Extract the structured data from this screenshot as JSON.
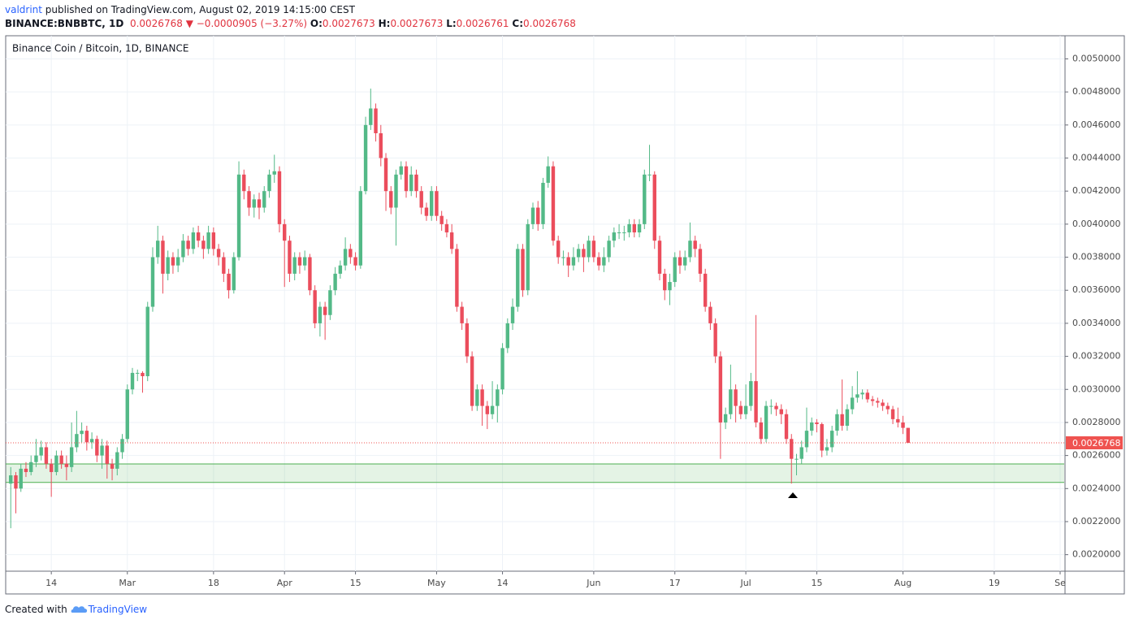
{
  "header": {
    "author": "valdrint",
    "published": " published on TradingView.com, August 02, 2019 14:15:00 CEST",
    "symbol": "BINANCE:BNBBTC, 1D",
    "change": "−0.0000905 (−3.27%)",
    "ohlc_labels": [
      "O:",
      "H:",
      "L:",
      "C:"
    ]
  },
  "footer": {
    "created": "Created with",
    "brand": "TradingView"
  },
  "chart_data": {
    "type": "candlestick",
    "title": "Binance Coin / Bitcoin, 1D, BINANCE",
    "up_color": "#53b987",
    "down_color": "#eb4d5c",
    "grid": true,
    "zone_color": "#4caf50",
    "price_line_color": "#ef5350",
    "zone": [
      0.002437,
      0.002549
    ],
    "xlim": [
      "02-05",
      "09-01"
    ],
    "xticks": [
      {
        "value": "02-14",
        "label": "14"
      },
      {
        "value": "03-01",
        "label": "Mar"
      },
      {
        "value": "03-18",
        "label": "18"
      },
      {
        "value": "04-01",
        "label": "Apr"
      },
      {
        "value": "04-15",
        "label": "15"
      },
      {
        "value": "05-01",
        "label": "May"
      },
      {
        "value": "05-14",
        "label": "14"
      },
      {
        "value": "06-01",
        "label": "Jun"
      },
      {
        "value": "06-17",
        "label": "17"
      },
      {
        "value": "07-01",
        "label": "Jul"
      },
      {
        "value": "07-15",
        "label": "15"
      },
      {
        "value": "08-01",
        "label": "Aug"
      },
      {
        "value": "08-19",
        "label": "19"
      },
      {
        "value": "09-01",
        "label": "Se"
      }
    ],
    "ylim": [
      0.0019,
      0.00514
    ],
    "yticks": [
      {
        "value": 0.002,
        "label": "0.0020000"
      },
      {
        "value": 0.0022,
        "label": "0.0022000"
      },
      {
        "value": 0.0024,
        "label": "0.0024000"
      },
      {
        "value": 0.0026,
        "label": "0.0026000"
      },
      {
        "value": 0.0028,
        "label": "0.0028000"
      },
      {
        "value": 0.003,
        "label": "0.0030000"
      },
      {
        "value": 0.0032,
        "label": "0.0032000"
      },
      {
        "value": 0.0034,
        "label": "0.0034000"
      },
      {
        "value": 0.0036,
        "label": "0.0036000"
      },
      {
        "value": 0.0038,
        "label": "0.0038000"
      },
      {
        "value": 0.004,
        "label": "0.0040000"
      },
      {
        "value": 0.0042,
        "label": "0.0042000"
      },
      {
        "value": 0.0044,
        "label": "0.0044000"
      },
      {
        "value": 0.0046,
        "label": "0.0046000"
      },
      {
        "value": 0.0048,
        "label": "0.0048000"
      },
      {
        "value": 0.005,
        "label": "0.0050000"
      }
    ],
    "x": [
      "02-06",
      "02-07",
      "02-08",
      "02-09",
      "02-10",
      "02-11",
      "02-12",
      "02-13",
      "02-14",
      "02-15",
      "02-16",
      "02-17",
      "02-18",
      "02-19",
      "02-20",
      "02-21",
      "02-22",
      "02-23",
      "02-24",
      "02-25",
      "02-26",
      "02-27",
      "02-28",
      "03-01",
      "03-02",
      "03-03",
      "03-04",
      "03-05",
      "03-06",
      "03-07",
      "03-08",
      "03-09",
      "03-10",
      "03-11",
      "03-12",
      "03-13",
      "03-14",
      "03-15",
      "03-16",
      "03-17",
      "03-18",
      "03-19",
      "03-20",
      "03-21",
      "03-22",
      "03-23",
      "03-24",
      "03-25",
      "03-26",
      "03-27",
      "03-28",
      "03-29",
      "03-30",
      "03-31",
      "04-01",
      "04-02",
      "04-03",
      "04-04",
      "04-05",
      "04-06",
      "04-07",
      "04-08",
      "04-09",
      "04-10",
      "04-11",
      "04-12",
      "04-13",
      "04-14",
      "04-15",
      "04-16",
      "04-17",
      "04-18",
      "04-19",
      "04-20",
      "04-21",
      "04-22",
      "04-23",
      "04-24",
      "04-25",
      "04-26",
      "04-27",
      "04-28",
      "04-29",
      "04-30",
      "05-01",
      "05-02",
      "05-03",
      "05-04",
      "05-05",
      "05-06",
      "05-07",
      "05-08",
      "05-09",
      "05-10",
      "05-11",
      "05-12",
      "05-13",
      "05-14",
      "05-15",
      "05-16",
      "05-17",
      "05-18",
      "05-19",
      "05-20",
      "05-21",
      "05-22",
      "05-23",
      "05-24",
      "05-25",
      "05-26",
      "05-27",
      "05-28",
      "05-29",
      "05-30",
      "05-31",
      "06-01",
      "06-02",
      "06-03",
      "06-04",
      "06-05",
      "06-06",
      "06-07",
      "06-08",
      "06-09",
      "06-10",
      "06-11",
      "06-12",
      "06-13",
      "06-14",
      "06-15",
      "06-16",
      "06-17",
      "06-18",
      "06-19",
      "06-20",
      "06-21",
      "06-22",
      "06-23",
      "06-24",
      "06-25",
      "06-26",
      "06-27",
      "06-28",
      "06-29",
      "06-30",
      "07-01",
      "07-02",
      "07-03",
      "07-04",
      "07-05",
      "07-06",
      "07-07",
      "07-08",
      "07-09",
      "07-10",
      "07-11",
      "07-12",
      "07-13",
      "07-14",
      "07-15",
      "07-16",
      "07-17",
      "07-18",
      "07-19",
      "07-20",
      "07-21",
      "07-22",
      "07-23",
      "07-24",
      "07-25",
      "07-26",
      "07-27",
      "07-28",
      "07-29",
      "07-30",
      "07-31",
      "08-01",
      "08-02"
    ],
    "open": [
      0.00243,
      0.00248,
      0.0024,
      0.00252,
      0.0025,
      0.00256,
      0.0026,
      0.00265,
      0.00255,
      0.0025,
      0.0026,
      0.00255,
      0.00253,
      0.00265,
      0.00273,
      0.00275,
      0.00268,
      0.0027,
      0.0026,
      0.00266,
      0.00255,
      0.00252,
      0.00262,
      0.0027,
      0.003,
      0.0031,
      0.0031,
      0.00308,
      0.0035,
      0.0038,
      0.0039,
      0.0037,
      0.0038,
      0.00375,
      0.0038,
      0.0039,
      0.00385,
      0.00395,
      0.0039,
      0.00385,
      0.00395,
      0.00385,
      0.0038,
      0.0037,
      0.0036,
      0.0038,
      0.0043,
      0.0042,
      0.0041,
      0.00415,
      0.0041,
      0.0042,
      0.0043,
      0.00432,
      0.004,
      0.0039,
      0.0037,
      0.0038,
      0.00375,
      0.0038,
      0.0036,
      0.0034,
      0.0035,
      0.00345,
      0.0036,
      0.0037,
      0.00375,
      0.00385,
      0.0038,
      0.00375,
      0.0042,
      0.0046,
      0.0047,
      0.00455,
      0.0044,
      0.0042,
      0.0041,
      0.0043,
      0.00435,
      0.0042,
      0.0043,
      0.0042,
      0.0041,
      0.00405,
      0.0042,
      0.00405,
      0.004,
      0.00395,
      0.00385,
      0.0035,
      0.0034,
      0.0032,
      0.0029,
      0.003,
      0.0029,
      0.00285,
      0.0029,
      0.003,
      0.00325,
      0.0034,
      0.0035,
      0.00385,
      0.0036,
      0.004,
      0.0041,
      0.004,
      0.00425,
      0.00435,
      0.0039,
      0.0038,
      0.0038,
      0.00375,
      0.0038,
      0.00385,
      0.0038,
      0.0039,
      0.0038,
      0.00375,
      0.0038,
      0.0039,
      0.00395,
      0.00395,
      0.00395,
      0.004,
      0.00395,
      0.004,
      0.0043,
      0.0043,
      0.0039,
      0.0037,
      0.0036,
      0.00365,
      0.0038,
      0.00375,
      0.0038,
      0.0039,
      0.00385,
      0.0037,
      0.0035,
      0.0034,
      0.0032,
      0.0028,
      0.00285,
      0.003,
      0.0029,
      0.00285,
      0.0029,
      0.00305,
      0.0028,
      0.0027,
      0.0029,
      0.0029,
      0.00288,
      0.00285,
      0.0027,
      0.00258,
      0.00258,
      0.00265,
      0.00275,
      0.0028,
      0.00279,
      0.00263,
      0.00265,
      0.00275,
      0.00285,
      0.00278,
      0.00288,
      0.00295,
      0.00297,
      0.00298,
      0.00294,
      0.00293,
      0.00292,
      0.0029,
      0.00288,
      0.00282,
      0.0028,
      0.0027673
    ],
    "high": [
      0.00253,
      0.0025,
      0.00255,
      0.00256,
      0.0026,
      0.0027,
      0.00269,
      0.00268,
      0.00258,
      0.00263,
      0.00263,
      0.0026,
      0.0028,
      0.00287,
      0.0028,
      0.00278,
      0.00274,
      0.00272,
      0.0027,
      0.00269,
      0.00258,
      0.00265,
      0.00273,
      0.00303,
      0.00313,
      0.00312,
      0.00311,
      0.00353,
      0.00386,
      0.00399,
      0.00393,
      0.00384,
      0.00383,
      0.00385,
      0.00394,
      0.00393,
      0.00398,
      0.00399,
      0.00393,
      0.00399,
      0.00398,
      0.00388,
      0.00383,
      0.00373,
      0.00383,
      0.00438,
      0.00433,
      0.00423,
      0.00418,
      0.00419,
      0.00423,
      0.00433,
      0.00442,
      0.00435,
      0.00403,
      0.00393,
      0.00383,
      0.00383,
      0.00384,
      0.00382,
      0.00363,
      0.00353,
      0.00353,
      0.00363,
      0.00374,
      0.00378,
      0.00392,
      0.00388,
      0.00383,
      0.00423,
      0.00465,
      0.00482,
      0.00473,
      0.0046,
      0.00443,
      0.00423,
      0.00433,
      0.00438,
      0.00438,
      0.00435,
      0.00433,
      0.00423,
      0.00413,
      0.00423,
      0.00423,
      0.00408,
      0.00403,
      0.004,
      0.00388,
      0.00353,
      0.00343,
      0.00323,
      0.00303,
      0.00303,
      0.00293,
      0.00305,
      0.00303,
      0.00328,
      0.00343,
      0.00355,
      0.00388,
      0.00388,
      0.00403,
      0.00413,
      0.00414,
      0.00428,
      0.00441,
      0.00438,
      0.00393,
      0.00384,
      0.00383,
      0.00386,
      0.00388,
      0.00388,
      0.00393,
      0.00393,
      0.00383,
      0.00386,
      0.00393,
      0.00398,
      0.004,
      0.00399,
      0.00403,
      0.00403,
      0.00403,
      0.00433,
      0.00448,
      0.00432,
      0.00393,
      0.00373,
      0.0037,
      0.00383,
      0.00384,
      0.00384,
      0.00401,
      0.00393,
      0.00388,
      0.00373,
      0.00353,
      0.00343,
      0.00323,
      0.00289,
      0.00315,
      0.00303,
      0.00293,
      0.00303,
      0.0031,
      0.00345,
      0.00283,
      0.00293,
      0.00294,
      0.00292,
      0.00291,
      0.00288,
      0.00273,
      0.00261,
      0.00269,
      0.00289,
      0.00283,
      0.00282,
      0.0028,
      0.0027,
      0.00278,
      0.00288,
      0.00306,
      0.00291,
      0.00302,
      0.00311,
      0.003,
      0.003,
      0.00296,
      0.00295,
      0.00294,
      0.00292,
      0.0029,
      0.00289,
      0.00284,
      0.0027673
    ],
    "low": [
      0.00216,
      0.00225,
      0.00238,
      0.00247,
      0.00248,
      0.00253,
      0.00257,
      0.00252,
      0.00235,
      0.00248,
      0.00252,
      0.00245,
      0.0025,
      0.00262,
      0.00268,
      0.00263,
      0.00264,
      0.00256,
      0.00252,
      0.00246,
      0.00245,
      0.00248,
      0.00258,
      0.00268,
      0.00297,
      0.00305,
      0.00298,
      0.00305,
      0.00347,
      0.00376,
      0.00358,
      0.00366,
      0.0037,
      0.00371,
      0.00377,
      0.00381,
      0.00382,
      0.00386,
      0.00379,
      0.00382,
      0.00381,
      0.00375,
      0.00365,
      0.00355,
      0.00358,
      0.00378,
      0.00415,
      0.00405,
      0.00404,
      0.00403,
      0.00407,
      0.00416,
      0.00425,
      0.00395,
      0.00362,
      0.00365,
      0.00366,
      0.0037,
      0.00372,
      0.00357,
      0.00337,
      0.00332,
      0.0033,
      0.00342,
      0.00357,
      0.00367,
      0.00372,
      0.00376,
      0.00372,
      0.00373,
      0.00418,
      0.00457,
      0.0045,
      0.00435,
      0.00408,
      0.00406,
      0.00387,
      0.00427,
      0.00416,
      0.00417,
      0.00416,
      0.00406,
      0.00402,
      0.00402,
      0.00402,
      0.00396,
      0.00392,
      0.00382,
      0.00347,
      0.00336,
      0.00316,
      0.00287,
      0.00287,
      0.00278,
      0.00276,
      0.00282,
      0.0028,
      0.00297,
      0.00322,
      0.00336,
      0.00347,
      0.00356,
      0.00357,
      0.00397,
      0.00396,
      0.00397,
      0.00422,
      0.00387,
      0.00376,
      0.00375,
      0.00368,
      0.00372,
      0.00377,
      0.00371,
      0.00377,
      0.00377,
      0.00372,
      0.00371,
      0.00377,
      0.00386,
      0.00391,
      0.0039,
      0.00392,
      0.00392,
      0.00392,
      0.00397,
      0.00426,
      0.00385,
      0.00366,
      0.00354,
      0.00351,
      0.00362,
      0.0037,
      0.00372,
      0.00377,
      0.0038,
      0.00365,
      0.00347,
      0.00336,
      0.00316,
      0.00258,
      0.00276,
      0.00282,
      0.0028,
      0.00282,
      0.00282,
      0.00287,
      0.00277,
      0.00267,
      0.00268,
      0.00285,
      0.00284,
      0.00279,
      0.00267,
      0.00243,
      0.00248,
      0.00255,
      0.00262,
      0.00272,
      0.00274,
      0.00259,
      0.0026,
      0.00262,
      0.00272,
      0.00275,
      0.00275,
      0.00285,
      0.00292,
      0.00294,
      0.00292,
      0.0029,
      0.00289,
      0.00287,
      0.00285,
      0.00279,
      0.00277,
      0.00273,
      0.0026761
    ],
    "close": [
      0.00248,
      0.0024,
      0.00252,
      0.0025,
      0.00256,
      0.0026,
      0.00265,
      0.00255,
      0.0025,
      0.0026,
      0.00255,
      0.00253,
      0.00265,
      0.00273,
      0.00275,
      0.00268,
      0.0027,
      0.0026,
      0.00266,
      0.00255,
      0.00252,
      0.00262,
      0.0027,
      0.003,
      0.0031,
      0.0031,
      0.00308,
      0.0035,
      0.0038,
      0.0039,
      0.0037,
      0.0038,
      0.00375,
      0.0038,
      0.0039,
      0.00385,
      0.00395,
      0.0039,
      0.00385,
      0.00395,
      0.00385,
      0.0038,
      0.0037,
      0.0036,
      0.0038,
      0.0043,
      0.0042,
      0.0041,
      0.00415,
      0.0041,
      0.0042,
      0.0043,
      0.00432,
      0.004,
      0.0039,
      0.0037,
      0.0038,
      0.00375,
      0.0038,
      0.0036,
      0.0034,
      0.0035,
      0.00345,
      0.0036,
      0.0037,
      0.00375,
      0.00385,
      0.0038,
      0.00375,
      0.0042,
      0.0046,
      0.0047,
      0.00455,
      0.0044,
      0.0042,
      0.0041,
      0.0043,
      0.00435,
      0.0042,
      0.0043,
      0.0042,
      0.0041,
      0.00405,
      0.0042,
      0.00405,
      0.004,
      0.00395,
      0.00385,
      0.0035,
      0.0034,
      0.0032,
      0.0029,
      0.003,
      0.0029,
      0.00285,
      0.0029,
      0.003,
      0.00325,
      0.0034,
      0.0035,
      0.00385,
      0.0036,
      0.004,
      0.0041,
      0.004,
      0.00425,
      0.00435,
      0.0039,
      0.0038,
      0.0038,
      0.00375,
      0.0038,
      0.00385,
      0.0038,
      0.0039,
      0.0038,
      0.00375,
      0.0038,
      0.0039,
      0.00395,
      0.00395,
      0.00395,
      0.004,
      0.00395,
      0.004,
      0.0043,
      0.0043,
      0.0039,
      0.0037,
      0.0036,
      0.00365,
      0.0038,
      0.00375,
      0.0038,
      0.0039,
      0.00385,
      0.0037,
      0.0035,
      0.0034,
      0.0032,
      0.0028,
      0.00285,
      0.003,
      0.0029,
      0.00285,
      0.0029,
      0.00305,
      0.0028,
      0.0027,
      0.0029,
      0.0029,
      0.00288,
      0.00285,
      0.0027,
      0.00258,
      0.00258,
      0.00265,
      0.00275,
      0.0028,
      0.00279,
      0.00263,
      0.00265,
      0.00275,
      0.00285,
      0.00278,
      0.00288,
      0.00295,
      0.00297,
      0.00298,
      0.00294,
      0.00293,
      0.00292,
      0.0029,
      0.00288,
      0.00282,
      0.0028,
      0.0027673,
      0.0026768
    ]
  }
}
